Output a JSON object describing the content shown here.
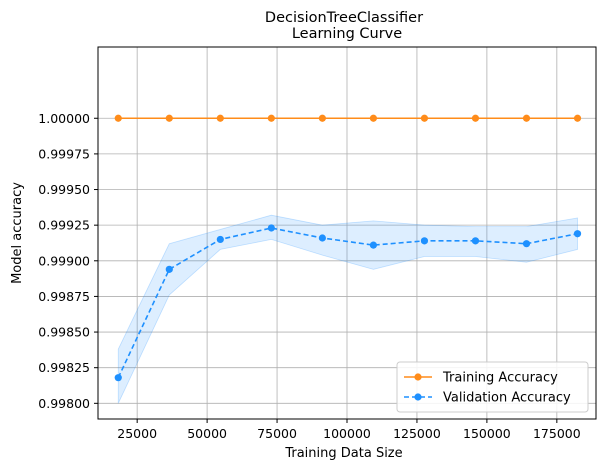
{
  "chart_data": {
    "type": "line",
    "title": "DecisionTreeClassifier",
    "subtitle": "Learning Curve",
    "xlabel": "Training Data Size",
    "ylabel": "Model accuracy",
    "xlim": [
      11000,
      189000
    ],
    "ylim": [
      0.99789,
      1.0005
    ],
    "xticks": [
      25000,
      50000,
      75000,
      100000,
      125000,
      150000,
      175000
    ],
    "yticks": [
      0.998,
      0.99825,
      0.9985,
      0.99875,
      0.999,
      0.99925,
      0.9995,
      0.99975,
      1.0
    ],
    "xtick_labels": [
      "25000",
      "50000",
      "75000",
      "100000",
      "125000",
      "150000",
      "175000"
    ],
    "ytick_labels": [
      "0.99800",
      "0.99825",
      "0.99850",
      "0.99875",
      "0.99900",
      "0.99925",
      "0.99950",
      "0.99975",
      "1.00000"
    ],
    "grid": true,
    "legend_position": "lower-right",
    "x": [
      18240,
      36480,
      54720,
      72960,
      91200,
      109440,
      127680,
      145920,
      164160,
      182400
    ],
    "series": [
      {
        "name": "Training Accuracy",
        "values": [
          1.0,
          1.0,
          1.0,
          1.0,
          1.0,
          1.0,
          1.0,
          1.0,
          1.0,
          1.0
        ],
        "color": "#ff8c1a",
        "line_style": "solid",
        "marker": "circle"
      },
      {
        "name": "Validation Accuracy",
        "values": [
          0.99818,
          0.99894,
          0.99915,
          0.99923,
          0.99916,
          0.99911,
          0.99914,
          0.99914,
          0.99912,
          0.99919
        ],
        "band_upper": [
          0.99838,
          0.99912,
          0.99922,
          0.99932,
          0.99925,
          0.99928,
          0.99925,
          0.99924,
          0.99924,
          0.9993
        ],
        "band_lower": [
          0.998,
          0.99876,
          0.99908,
          0.99915,
          0.99904,
          0.99894,
          0.99903,
          0.99903,
          0.99899,
          0.99908
        ],
        "color": "#1e90ff",
        "band_color": "#1e90ff",
        "line_style": "dashed",
        "marker": "circle"
      }
    ]
  }
}
